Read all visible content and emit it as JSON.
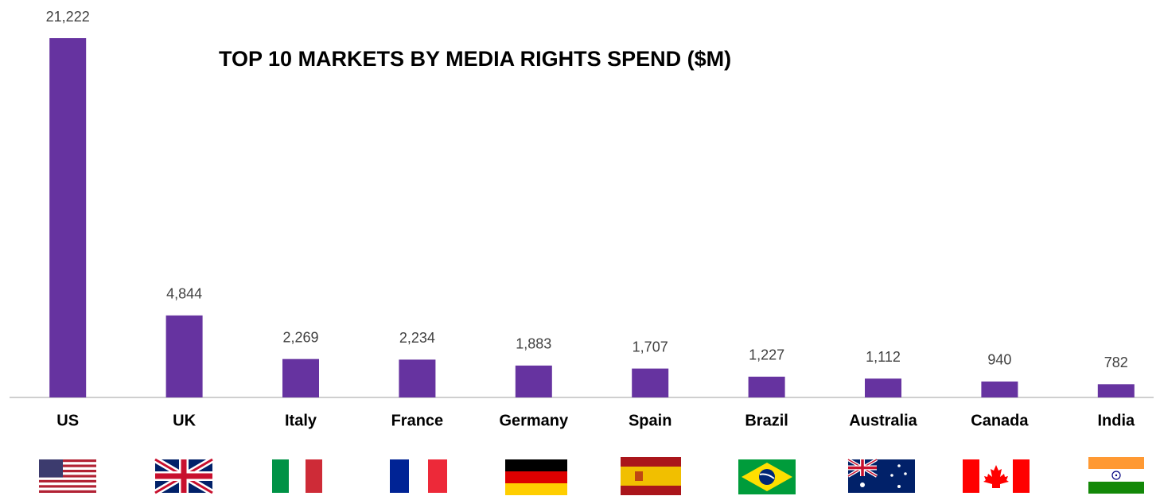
{
  "chart_data": {
    "type": "bar",
    "title": "TOP 10 MARKETS BY MEDIA RIGHTS SPEND ($M)",
    "categories": [
      "US",
      "UK",
      "Italy",
      "France",
      "Germany",
      "Spain",
      "Brazil",
      "Australia",
      "Canada",
      "India"
    ],
    "values": [
      21222,
      4844,
      2269,
      2234,
      1883,
      1707,
      1227,
      1112,
      940,
      782
    ],
    "value_labels": [
      "21,222",
      "4,844",
      "2,269",
      "2,234",
      "1,883",
      "1,707",
      "1,227",
      "1,112",
      "940",
      "782"
    ],
    "color": "#6633a0"
  }
}
